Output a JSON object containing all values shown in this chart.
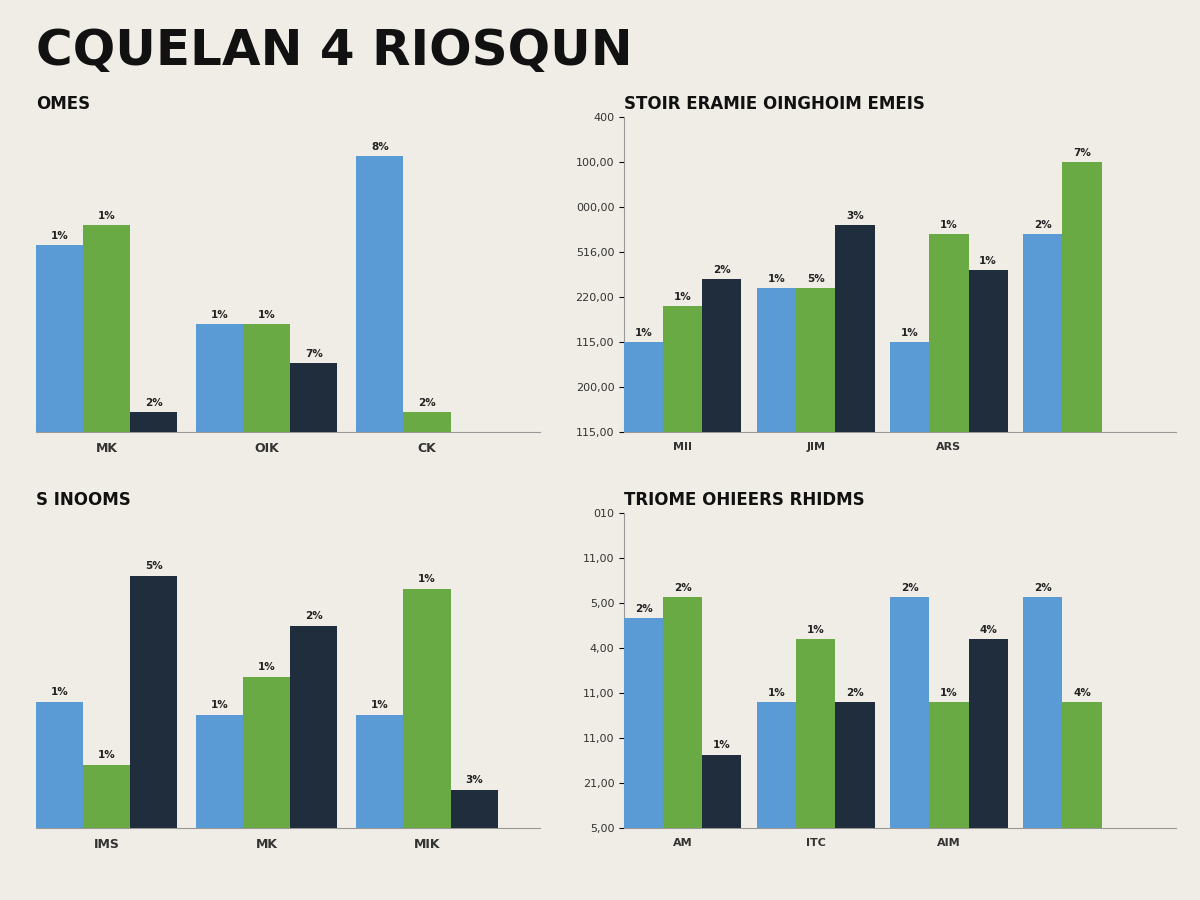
{
  "title": "CQUELAN 4 RIOSQUN",
  "title_fontsize": 36,
  "background_color": "#f0ede6",
  "bar_colors": [
    "#5b9bd5",
    "#6aaa45",
    "#1f2d3d"
  ],
  "panels": [
    {
      "title": "OMES",
      "title_fontsize": 12,
      "categories": [
        "MK",
        "OIK",
        "CK"
      ],
      "series": [
        [
          19,
          11,
          28
        ],
        [
          21,
          11,
          2
        ],
        [
          2,
          7,
          0
        ]
      ],
      "labels": [
        [
          "1%",
          "1%",
          "8%"
        ],
        [
          "1%",
          "1%",
          "2%"
        ],
        [
          "2%",
          "7%",
          ""
        ]
      ],
      "ylim": [
        0,
        32
      ],
      "has_yaxis": false
    },
    {
      "title": "STOIR ERAMIE OINGHOIM EMEIS",
      "title_fontsize": 12,
      "categories": [
        "MII",
        "JIM",
        "ARS",
        ""
      ],
      "series": [
        [
          10,
          16,
          10,
          22
        ],
        [
          14,
          16,
          22,
          30
        ],
        [
          17,
          23,
          18,
          0
        ]
      ],
      "labels": [
        [
          "1%",
          "1%",
          "1%",
          "2%"
        ],
        [
          "1%",
          "5%",
          "1%",
          "7%"
        ],
        [
          "2%",
          "3%",
          "1%",
          ""
        ]
      ],
      "ylim": [
        0,
        35
      ],
      "has_yaxis": true,
      "ytick_labels": [
        "115,00",
        "200,00",
        "115,00",
        "220,00",
        "516,00",
        "000,00",
        "100,00",
        "400"
      ]
    },
    {
      "title": "S INOOMS",
      "title_fontsize": 12,
      "categories": [
        "IMS",
        "MK",
        "MIK"
      ],
      "series": [
        [
          10,
          9,
          9
        ],
        [
          5,
          12,
          19
        ],
        [
          20,
          16,
          3
        ]
      ],
      "labels": [
        [
          "1%",
          "1%",
          "1%"
        ],
        [
          "1%",
          "1%",
          "1%"
        ],
        [
          "5%",
          "2%",
          "3%"
        ]
      ],
      "ylim": [
        0,
        25
      ],
      "has_yaxis": false
    },
    {
      "title": "TRIOME OHIEERS RHIDMS",
      "title_fontsize": 12,
      "categories": [
        "AM",
        "ITC",
        "AIM",
        ""
      ],
      "series": [
        [
          20,
          12,
          22,
          22
        ],
        [
          22,
          18,
          12,
          12
        ],
        [
          7,
          12,
          18,
          0
        ]
      ],
      "labels": [
        [
          "2%",
          "1%",
          "2%",
          "2%"
        ],
        [
          "2%",
          "1%",
          "1%",
          "4%"
        ],
        [
          "1%",
          "2%",
          "4%",
          ""
        ]
      ],
      "ylim": [
        0,
        30
      ],
      "has_yaxis": true,
      "ytick_labels": [
        "5,00",
        "21,00",
        "11,00",
        "11,00",
        "4,00",
        "5,00",
        "11,00",
        "010"
      ]
    }
  ]
}
